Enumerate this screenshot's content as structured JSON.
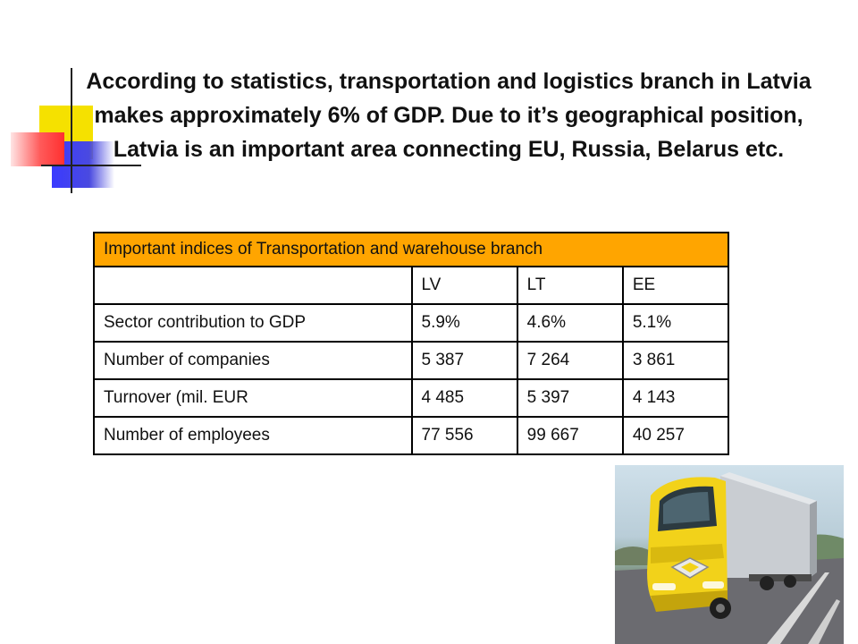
{
  "slide": {
    "title": "According to statistics, transportation and logistics branch in Latvia makes approximately 6% of GDP. Due to it’s geographical position, Latvia is an important area connecting EU, Russia, Belarus etc."
  },
  "table": {
    "caption": "Important indices of Transportation and warehouse branch",
    "columns": [
      "",
      "LV",
      "LT",
      "EE"
    ],
    "rows": [
      [
        "Sector contribution to GDP",
        "5.9%",
        "4.6%",
        "5.1%"
      ],
      [
        "Number of companies",
        "5 387",
        "7 264",
        "3 861"
      ],
      [
        "Turnover (mil. EUR",
        "4 485",
        "5 397",
        "4 143"
      ],
      [
        "Number of employees",
        "77 556",
        "99 667",
        "40 257"
      ]
    ]
  },
  "image": {
    "icon": "yellow-truck-photo",
    "colors": {
      "truck_yellow": "#f2d21a",
      "road": "#6b6b70",
      "sky": "#cfe0ea"
    }
  }
}
